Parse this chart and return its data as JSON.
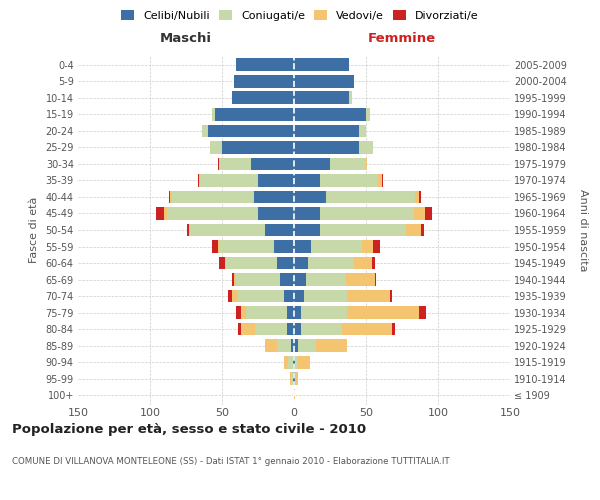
{
  "age_groups": [
    "100+",
    "95-99",
    "90-94",
    "85-89",
    "80-84",
    "75-79",
    "70-74",
    "65-69",
    "60-64",
    "55-59",
    "50-54",
    "45-49",
    "40-44",
    "35-39",
    "30-34",
    "25-29",
    "20-24",
    "15-19",
    "10-14",
    "5-9",
    "0-4"
  ],
  "birth_years": [
    "≤ 1909",
    "1910-1914",
    "1915-1919",
    "1920-1924",
    "1925-1929",
    "1930-1934",
    "1935-1939",
    "1940-1944",
    "1945-1949",
    "1950-1954",
    "1955-1959",
    "1960-1964",
    "1965-1969",
    "1970-1974",
    "1975-1979",
    "1980-1984",
    "1985-1989",
    "1990-1994",
    "1995-1999",
    "2000-2004",
    "2005-2009"
  ],
  "maschi": {
    "celibi": [
      0,
      1,
      1,
      2,
      5,
      5,
      7,
      10,
      12,
      14,
      20,
      25,
      28,
      25,
      30,
      50,
      60,
      55,
      43,
      42,
      40
    ],
    "coniugati": [
      0,
      1,
      3,
      10,
      22,
      28,
      32,
      30,
      35,
      38,
      52,
      63,
      57,
      40,
      22,
      8,
      4,
      2,
      0,
      0,
      0
    ],
    "vedovi": [
      0,
      1,
      3,
      8,
      10,
      4,
      4,
      2,
      1,
      1,
      1,
      2,
      1,
      1,
      0,
      0,
      0,
      0,
      0,
      0,
      0
    ],
    "divorziati": [
      0,
      0,
      0,
      0,
      2,
      3,
      3,
      1,
      4,
      4,
      1,
      6,
      1,
      1,
      1,
      0,
      0,
      0,
      0,
      0,
      0
    ]
  },
  "femmine": {
    "nubili": [
      0,
      1,
      1,
      3,
      5,
      5,
      7,
      8,
      10,
      12,
      18,
      18,
      22,
      18,
      25,
      45,
      45,
      50,
      38,
      42,
      38
    ],
    "coniugate": [
      0,
      0,
      2,
      12,
      28,
      32,
      30,
      28,
      32,
      35,
      60,
      65,
      62,
      40,
      25,
      10,
      5,
      3,
      2,
      0,
      0
    ],
    "vedove": [
      1,
      2,
      8,
      22,
      35,
      50,
      30,
      20,
      12,
      8,
      10,
      8,
      3,
      3,
      1,
      0,
      0,
      0,
      0,
      0,
      0
    ],
    "divorziate": [
      0,
      0,
      0,
      0,
      2,
      5,
      1,
      1,
      2,
      5,
      2,
      5,
      1,
      1,
      0,
      0,
      0,
      0,
      0,
      0,
      0
    ]
  },
  "color_celibi": "#3d6fa5",
  "color_coniugati": "#c7d9a8",
  "color_vedovi": "#f5c470",
  "color_divorziati": "#cc2222",
  "title": "Popolazione per età, sesso e stato civile - 2010",
  "subtitle": "COMUNE DI VILLANOVA MONTELEONE (SS) - Dati ISTAT 1° gennaio 2010 - Elaborazione TUTTITALIA.IT",
  "xlabel_left": "Maschi",
  "xlabel_right": "Femmine",
  "ylabel_left": "Fasce di età",
  "ylabel_right": "Anni di nascita",
  "xlim": 150,
  "bg_color": "#ffffff",
  "grid_color": "#cccccc"
}
